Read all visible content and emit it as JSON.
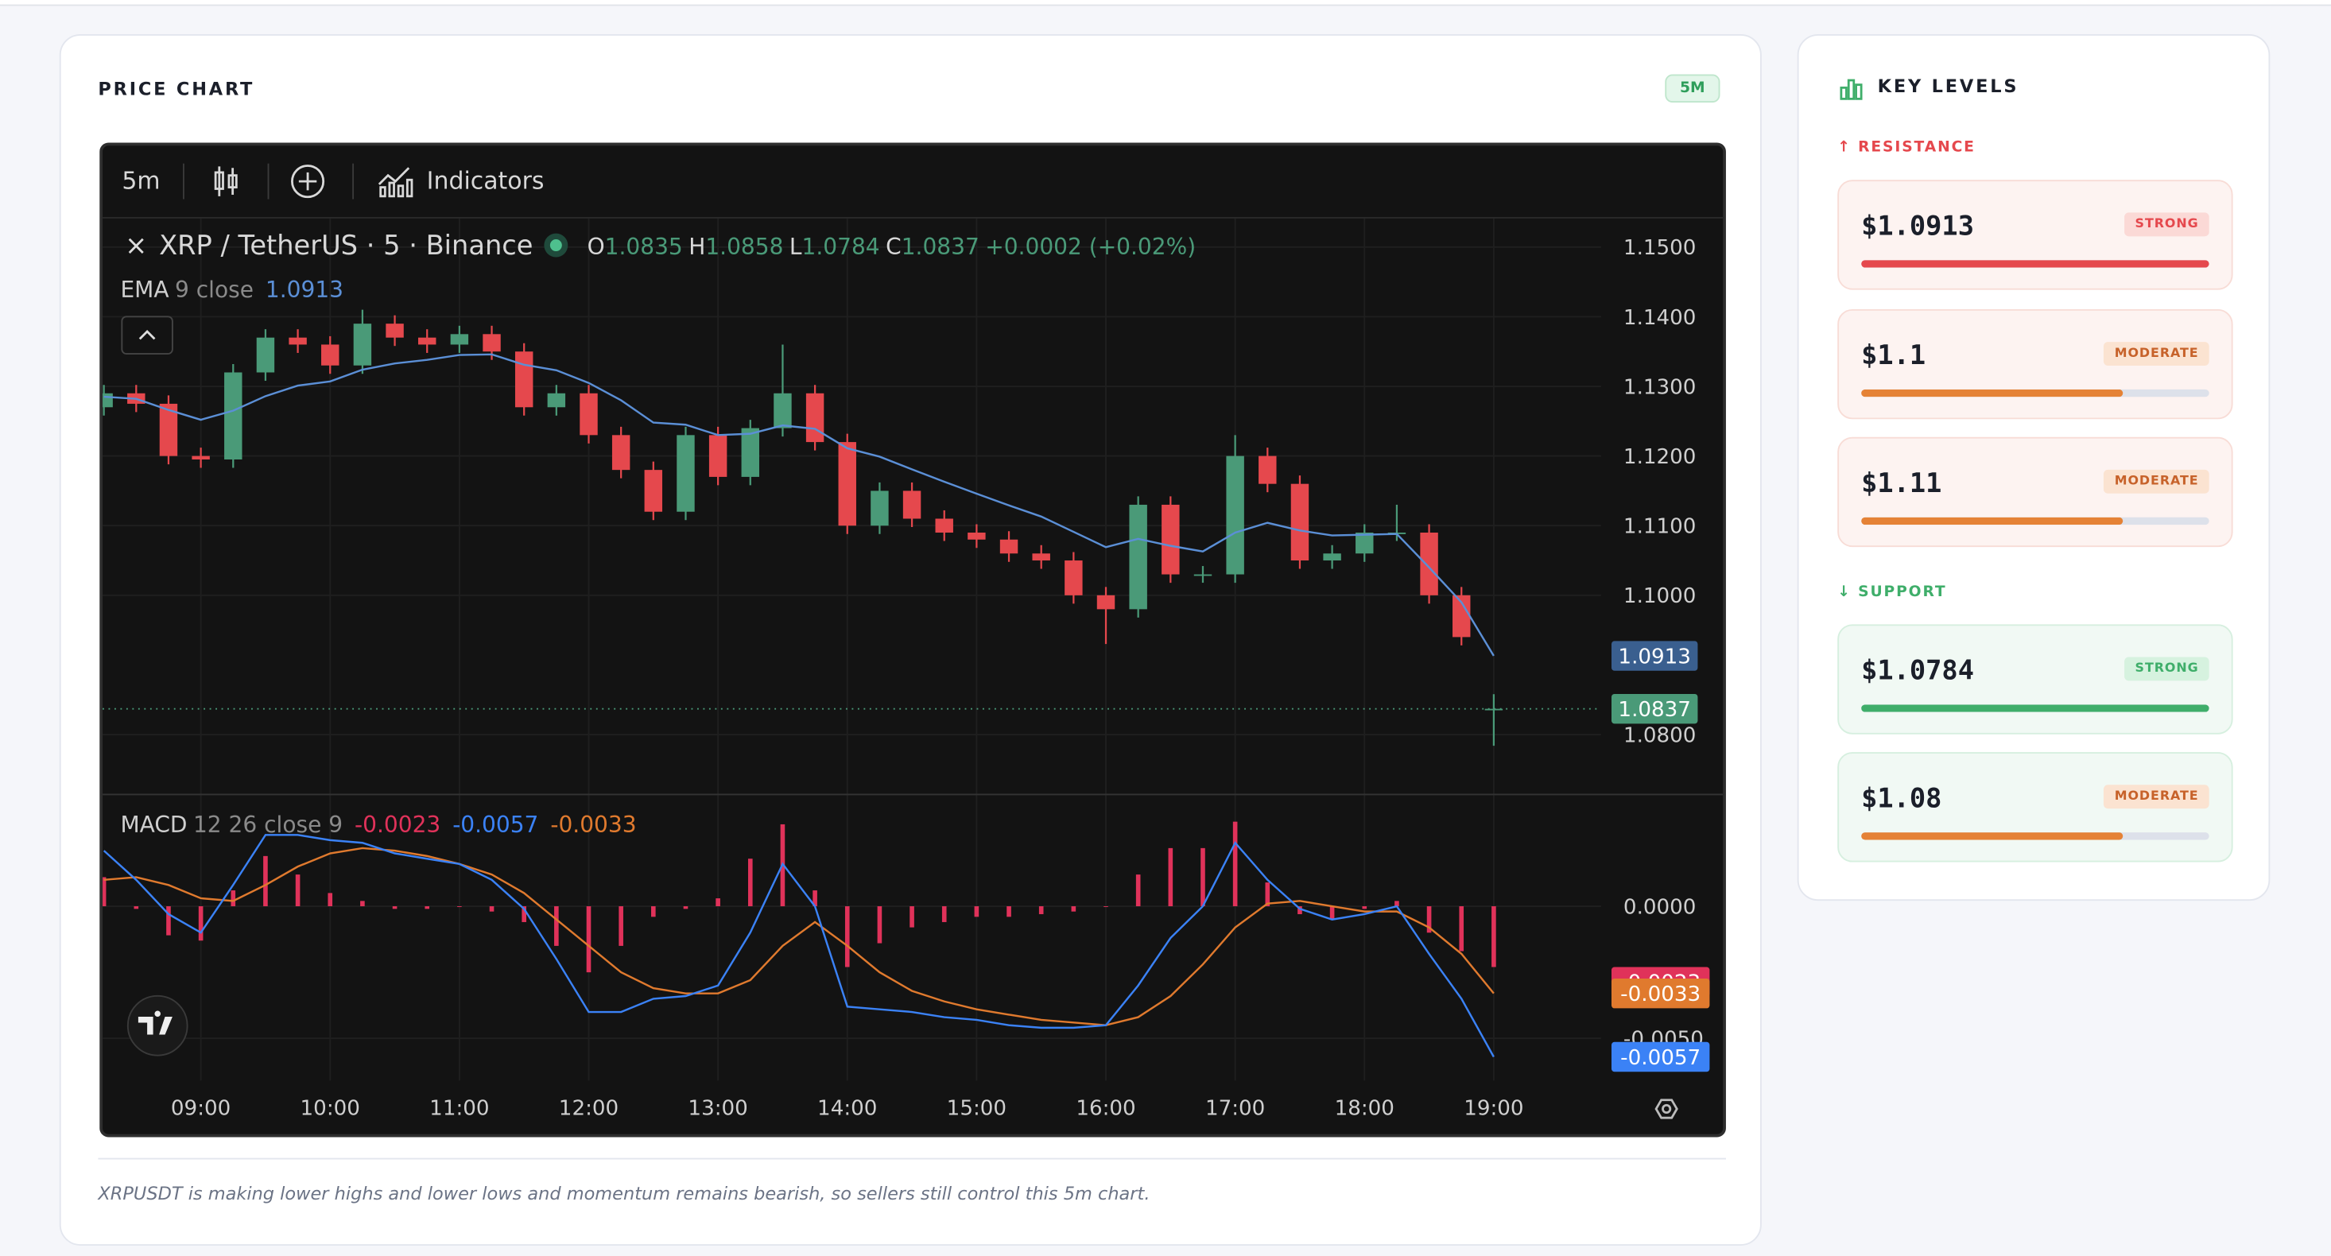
{
  "header": {
    "title": "PRICE CHART",
    "timeframe_badge": "5M"
  },
  "toolbar": {
    "interval": "5m",
    "indicators": "Indicators"
  },
  "chart_data": {
    "type": "candlestick",
    "symbol": "XRP / TetherUS · 5 · Binance",
    "ohlc_labels": [
      "O",
      "H",
      "L",
      "C"
    ],
    "change": "+0.0002 (+0.02%)",
    "up_color": "#4a9a78",
    "down_color": "#e5484d",
    "x": [
      8.25,
      8.5,
      8.75,
      9,
      9.25,
      9.5,
      9.75,
      10,
      10.25,
      10.5,
      10.75,
      11,
      11.25,
      11.5,
      11.75,
      12,
      12.25,
      12.5,
      12.75,
      13,
      13.25,
      13.5,
      13.75,
      14,
      14.25,
      14.5,
      14.75,
      15,
      15.25,
      15.5,
      15.75,
      16,
      16.25,
      16.5,
      16.75,
      17,
      17.25,
      17.5,
      17.75,
      18,
      18.25,
      18.5,
      18.75,
      19
    ],
    "candles": [
      [
        1.127,
        1.1302,
        1.1258,
        1.129
      ],
      [
        1.129,
        1.1302,
        1.1263,
        1.1275
      ],
      [
        1.1275,
        1.1287,
        1.1188,
        1.12
      ],
      [
        1.12,
        1.1212,
        1.1183,
        1.1195
      ],
      [
        1.1195,
        1.1332,
        1.1183,
        1.132
      ],
      [
        1.132,
        1.1382,
        1.1308,
        1.137
      ],
      [
        1.137,
        1.1382,
        1.1348,
        1.136
      ],
      [
        1.136,
        1.1372,
        1.1318,
        1.133
      ],
      [
        1.133,
        1.141,
        1.1318,
        1.139
      ],
      [
        1.139,
        1.1402,
        1.1358,
        1.137
      ],
      [
        1.137,
        1.1382,
        1.1348,
        1.136
      ],
      [
        1.136,
        1.1387,
        1.1348,
        1.1375
      ],
      [
        1.1375,
        1.1387,
        1.1338,
        1.135
      ],
      [
        1.135,
        1.1362,
        1.1258,
        1.127
      ],
      [
        1.127,
        1.1302,
        1.1258,
        1.129
      ],
      [
        1.129,
        1.1302,
        1.1218,
        1.123
      ],
      [
        1.123,
        1.1242,
        1.1168,
        1.118
      ],
      [
        1.118,
        1.1192,
        1.1108,
        1.112
      ],
      [
        1.112,
        1.1242,
        1.1108,
        1.123
      ],
      [
        1.123,
        1.1242,
        1.1158,
        1.117
      ],
      [
        1.117,
        1.1252,
        1.1158,
        1.124
      ],
      [
        1.124,
        1.136,
        1.1228,
        1.129
      ],
      [
        1.129,
        1.1302,
        1.1208,
        1.122
      ],
      [
        1.122,
        1.1232,
        1.1088,
        1.11
      ],
      [
        1.11,
        1.1162,
        1.1088,
        1.115
      ],
      [
        1.115,
        1.1162,
        1.1098,
        1.111
      ],
      [
        1.111,
        1.1122,
        1.1078,
        1.109
      ],
      [
        1.109,
        1.1102,
        1.1068,
        1.108
      ],
      [
        1.108,
        1.1092,
        1.1048,
        1.106
      ],
      [
        1.106,
        1.1072,
        1.1038,
        1.105
      ],
      [
        1.105,
        1.1062,
        1.0988,
        1.1
      ],
      [
        1.1,
        1.1012,
        1.093,
        1.098
      ],
      [
        1.098,
        1.1142,
        1.0968,
        1.113
      ],
      [
        1.113,
        1.1142,
        1.1018,
        1.103
      ],
      [
        1.103,
        1.1042,
        1.1018,
        1.103
      ],
      [
        1.103,
        1.123,
        1.1018,
        1.12
      ],
      [
        1.12,
        1.1212,
        1.1148,
        1.116
      ],
      [
        1.116,
        1.1172,
        1.1038,
        1.105
      ],
      [
        1.105,
        1.1072,
        1.1038,
        1.106
      ],
      [
        1.106,
        1.1102,
        1.1048,
        1.109
      ],
      [
        1.109,
        1.113,
        1.1078,
        1.109
      ],
      [
        1.109,
        1.1102,
        1.0988,
        1.1
      ],
      [
        1.1,
        1.1012,
        1.0928,
        1.094
      ],
      [
        1.0835,
        1.0858,
        1.0784,
        1.0837
      ]
    ],
    "xlim": [
      8.24,
      19.83
    ],
    "xticks": [
      {
        "value": 9,
        "label": "09:00"
      },
      {
        "value": 10,
        "label": "10:00"
      },
      {
        "value": 11,
        "label": "11:00"
      },
      {
        "value": 12,
        "label": "12:00"
      },
      {
        "value": 13,
        "label": "13:00"
      },
      {
        "value": 14,
        "label": "14:00"
      },
      {
        "value": 15,
        "label": "15:00"
      },
      {
        "value": 16,
        "label": "16:00"
      },
      {
        "value": 17,
        "label": "17:00"
      },
      {
        "value": 18,
        "label": "18:00"
      },
      {
        "value": 19,
        "label": "19:00"
      }
    ],
    "ylim": [
      1.0715,
      1.1541
    ],
    "yticks": [
      {
        "value": 1.08,
        "label": "1.0800"
      },
      {
        "value": 1.1,
        "label": "1.1000"
      },
      {
        "value": 1.11,
        "label": "1.1100"
      },
      {
        "value": 1.12,
        "label": "1.1200"
      },
      {
        "value": 1.13,
        "label": "1.1300"
      },
      {
        "value": 1.14,
        "label": "1.1400"
      },
      {
        "value": 1.15,
        "label": "1.1500"
      }
    ],
    "grid": true,
    "ema": {
      "name": "EMA",
      "params": "9 close",
      "color": "#5b8fd6",
      "values": [
        1.1285,
        1.1282,
        1.1266,
        1.1252,
        1.1265,
        1.1286,
        1.1301,
        1.1307,
        1.1324,
        1.1333,
        1.1338,
        1.1345,
        1.1346,
        1.1331,
        1.1323,
        1.1305,
        1.128,
        1.1248,
        1.1245,
        1.123,
        1.1232,
        1.1244,
        1.1239,
        1.1211,
        1.1199,
        1.1181,
        1.1163,
        1.1146,
        1.1129,
        1.1113,
        1.1091,
        1.1069,
        1.1081,
        1.1071,
        1.1063,
        1.109,
        1.1104,
        1.1093,
        1.1086,
        1.1087,
        1.1088,
        1.104,
        1.099,
        1.0913
      ]
    },
    "macd": {
      "name": "MACD",
      "params": "12 26 close 9",
      "ylim": [
        -0.0066,
        0.0042
      ],
      "yticks": [
        {
          "value": 0,
          "label": "0.0000"
        },
        {
          "value": -0.005,
          "label": "-0.0050"
        }
      ],
      "histogram": {
        "color": "#e0325a",
        "values": [
          0.0011,
          -0.0001,
          -0.0011,
          -0.0013,
          0.0006,
          0.0019,
          0.0012,
          0.0005,
          0.0002,
          -0.0001,
          -0.0001,
          0,
          -0.0002,
          -0.0006,
          -0.0015,
          -0.0025,
          -0.0015,
          -0.0004,
          -0.0001,
          0.0003,
          0.0018,
          0.0031,
          0.0006,
          -0.0023,
          -0.0014,
          -0.0008,
          -0.0006,
          -0.0004,
          -0.0004,
          -0.0003,
          -0.0002,
          0,
          0.0012,
          0.0022,
          0.0022,
          0.0032,
          0.0009,
          -0.0003,
          -0.0005,
          -0.0001,
          0.0002,
          -0.001,
          -0.0017,
          -0.0023
        ]
      },
      "macd": {
        "color": "#3b82f6",
        "values": [
          0.0021,
          0.001,
          -0.0003,
          -0.001,
          0.0008,
          0.0027,
          0.0027,
          0.0025,
          0.0024,
          0.002,
          0.0018,
          0.0016,
          0.001,
          -0.0001,
          -0.002,
          -0.004,
          -0.004,
          -0.0035,
          -0.0034,
          -0.003,
          -0.001,
          0.0016,
          0,
          -0.0038,
          -0.0039,
          -0.004,
          -0.0042,
          -0.0043,
          -0.0045,
          -0.0046,
          -0.0046,
          -0.0045,
          -0.003,
          -0.0012,
          0,
          0.0024,
          0.001,
          -0.0001,
          -0.0005,
          -0.0003,
          0,
          -0.0018,
          -0.0035,
          -0.0057
        ]
      },
      "signal": {
        "color": "#e07a2e",
        "values": [
          0.001,
          0.0011,
          0.0008,
          0.0003,
          0.0002,
          0.0008,
          0.0015,
          0.002,
          0.0022,
          0.0021,
          0.0019,
          0.0016,
          0.0012,
          0.0005,
          -0.0005,
          -0.0015,
          -0.0025,
          -0.0031,
          -0.0033,
          -0.0033,
          -0.0028,
          -0.0015,
          -0.0006,
          -0.0015,
          -0.0025,
          -0.0032,
          -0.0036,
          -0.0039,
          -0.0041,
          -0.0043,
          -0.0044,
          -0.0045,
          -0.0042,
          -0.0034,
          -0.0022,
          -0.0008,
          0.0001,
          0.0002,
          0,
          -0.0002,
          -0.0002,
          -0.0008,
          -0.0018,
          -0.0033
        ]
      }
    }
  },
  "caption": "XRPUSDT is making lower highs and lower lows and momentum remains bearish, so sellers still control this 5m chart.",
  "key_levels": {
    "title": "KEY LEVELS",
    "groups": [
      {
        "label": "RESISTANCE",
        "color": "#e5484d",
        "levels": [
          {
            "price": "$1.0913",
            "strength_label": "STRONG",
            "strength": 100
          },
          {
            "price": "$1.1",
            "strength_label": "MODERATE",
            "strength": 75
          },
          {
            "price": "$1.11",
            "strength_label": "MODERATE",
            "strength": 75
          }
        ]
      },
      {
        "label": "SUPPORT",
        "color": "#3fae6a",
        "levels": [
          {
            "price": "$1.0784",
            "strength_label": "STRONG",
            "strength": 100
          },
          {
            "price": "$1.08",
            "strength_label": "MODERATE",
            "strength": 75
          }
        ]
      }
    ]
  }
}
